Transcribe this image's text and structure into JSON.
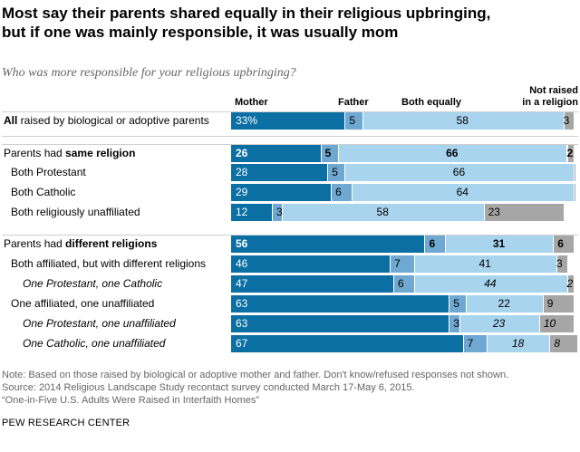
{
  "title": {
    "line1": "Most say their parents shared equally in their religious upbringing,",
    "line2": "but if one was mainly responsible, it was usually mom"
  },
  "subtitle": "Who was more responsible for your religious upbringing?",
  "chart_data": {
    "type": "bar",
    "orientation": "horizontal",
    "stacked": true,
    "series": [
      {
        "name": "Mother",
        "color": "#0b6fa4",
        "labelColor": "#ffffff"
      },
      {
        "name": "Father",
        "color": "#6fa8d0",
        "labelColor": "#000000"
      },
      {
        "name": "Both equally",
        "color": "#a8d4ee",
        "labelColor": "#000000"
      },
      {
        "name": "Not raised in a religion",
        "name_line1": "Not raised",
        "name_line2": "in a religion",
        "color": "#a6a6a6",
        "labelColor": "#000000"
      }
    ],
    "rows": [
      {
        "label_bold": "All",
        "label_rest": " raised by biological or adoptive parents",
        "values": [
          33,
          5,
          58,
          3
        ],
        "labels": [
          "33%",
          "5",
          "58",
          "3"
        ]
      },
      {
        "label_pre": "Parents had ",
        "label_bold": "same religion",
        "values": [
          26,
          5,
          66,
          2
        ],
        "labels": [
          "26",
          "5",
          "66",
          "2"
        ],
        "bold_values": true
      },
      {
        "label": "Both Protestant",
        "values": [
          28,
          5,
          66,
          0.6
        ],
        "labels": [
          "28",
          "5",
          "66",
          ""
        ]
      },
      {
        "label": "Both Catholic",
        "values": [
          29,
          6,
          64,
          0.6
        ],
        "labels": [
          "29",
          "6",
          "64",
          ""
        ]
      },
      {
        "label": "Both religiously unaffiliated",
        "values": [
          12,
          3,
          58,
          23
        ],
        "labels": [
          "12",
          "3",
          "58",
          "23"
        ]
      },
      {
        "label_pre": "Parents had ",
        "label_bold": "different religions",
        "values": [
          56,
          6,
          31,
          6
        ],
        "labels": [
          "56",
          "6",
          "31",
          "6"
        ],
        "bold_values": true
      },
      {
        "label": "Both affiliated, but with different religions",
        "values": [
          46,
          7,
          41,
          3
        ],
        "labels": [
          "46",
          "7",
          "41",
          "3"
        ]
      },
      {
        "label": "One Protestant, one Catholic",
        "values": [
          47,
          6,
          44,
          2
        ],
        "labels": [
          "47",
          "6",
          "44",
          "2"
        ],
        "italic": true
      },
      {
        "label": "One affiliated, one unaffiliated",
        "values": [
          63,
          5,
          22,
          9
        ],
        "labels": [
          "63",
          "5",
          "22",
          "9"
        ]
      },
      {
        "label": "One Protestant, one unaffiliated",
        "values": [
          63,
          3,
          23,
          10
        ],
        "labels": [
          "63",
          "3",
          "23",
          "10"
        ],
        "italic": true
      },
      {
        "label": "One Catholic, one unaffiliated",
        "values": [
          67,
          7,
          18,
          8
        ],
        "labels": [
          "67",
          "7",
          "18",
          "8"
        ],
        "italic": true
      }
    ],
    "xlim": [
      0,
      100
    ]
  },
  "notes": {
    "line1": "Note: Based on those raised by biological or adoptive mother and father. Don't know/refused responses not shown.",
    "line2": "Source: 2014 Religious Landscape Study recontact survey conducted March 17-May 6, 2015.",
    "line3": "“One-in-Five U.S. Adults Were Raised in Interfaith Homes”"
  },
  "credit": "PEW RESEARCH CENTER"
}
